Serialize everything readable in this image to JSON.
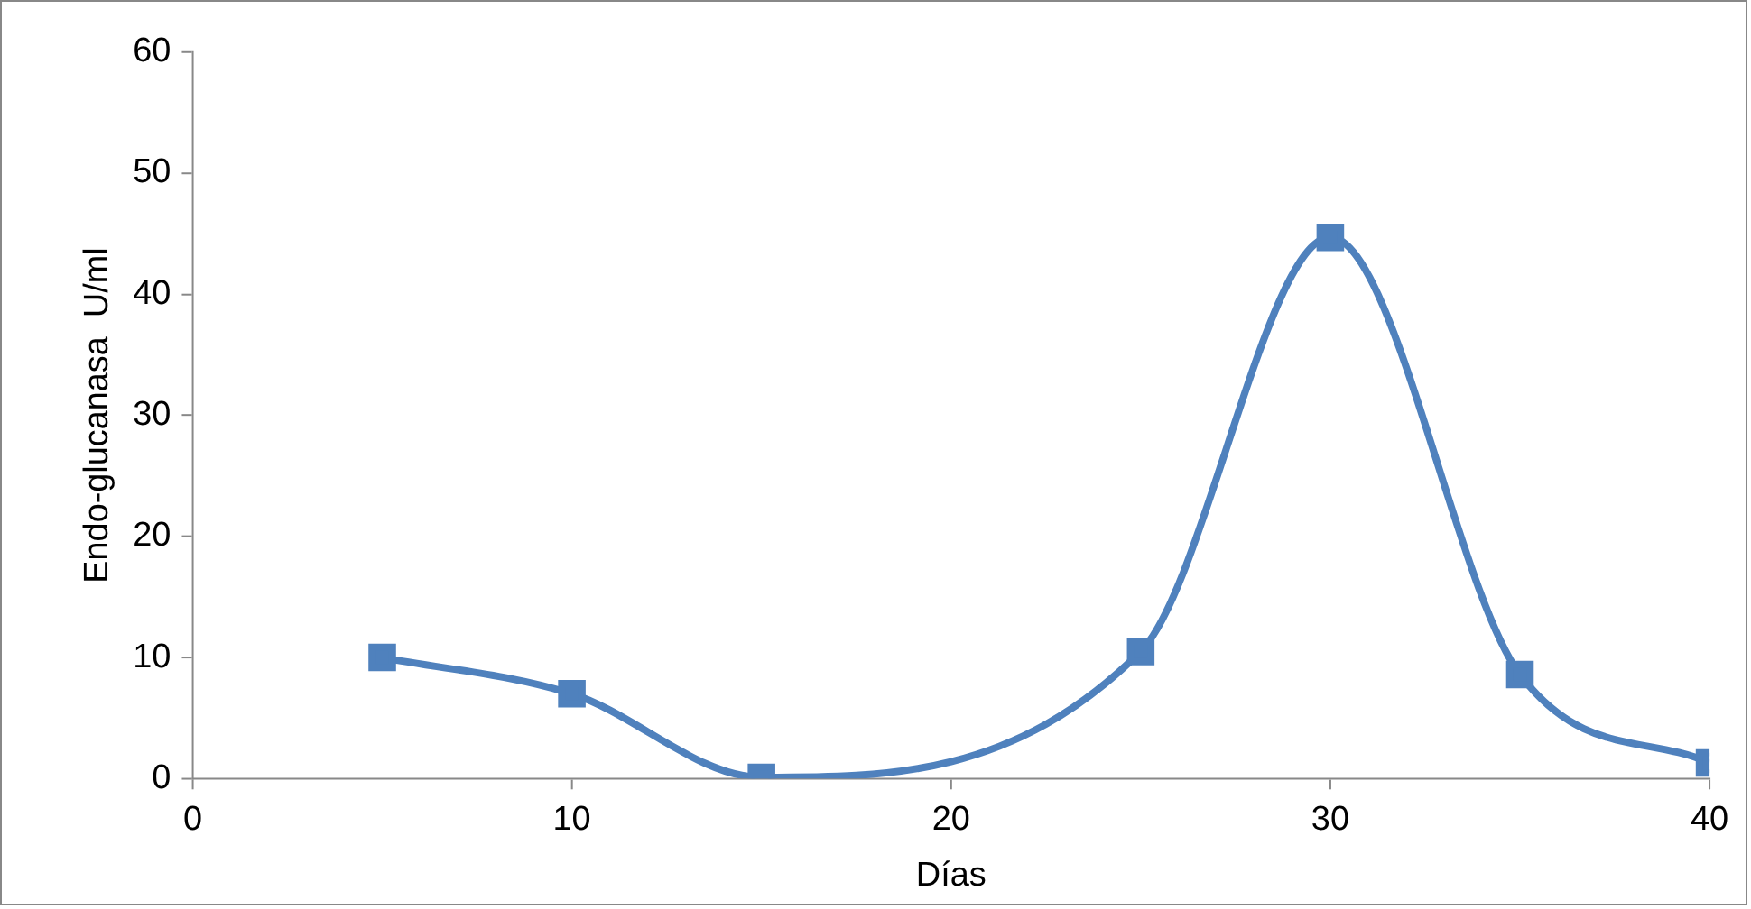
{
  "chart_data": {
    "type": "line",
    "xlabel": "Días",
    "ylabel": "Endo-glucanasa  U/ml",
    "x": [
      5,
      10,
      15,
      25,
      30,
      35,
      40
    ],
    "series": [
      {
        "color": "#4f81bd",
        "values": [
          10,
          7,
          0.1,
          10.5,
          44.7,
          8.6,
          1.3
        ]
      }
    ],
    "xlim": [
      0,
      40
    ],
    "xticks": [
      0,
      10,
      20,
      30,
      40
    ],
    "ylim": [
      0,
      60
    ],
    "yticks": [
      0,
      10,
      20,
      30,
      40,
      50,
      60
    ],
    "grid": false,
    "legend": false,
    "marker": "square",
    "line_style": "solid"
  }
}
